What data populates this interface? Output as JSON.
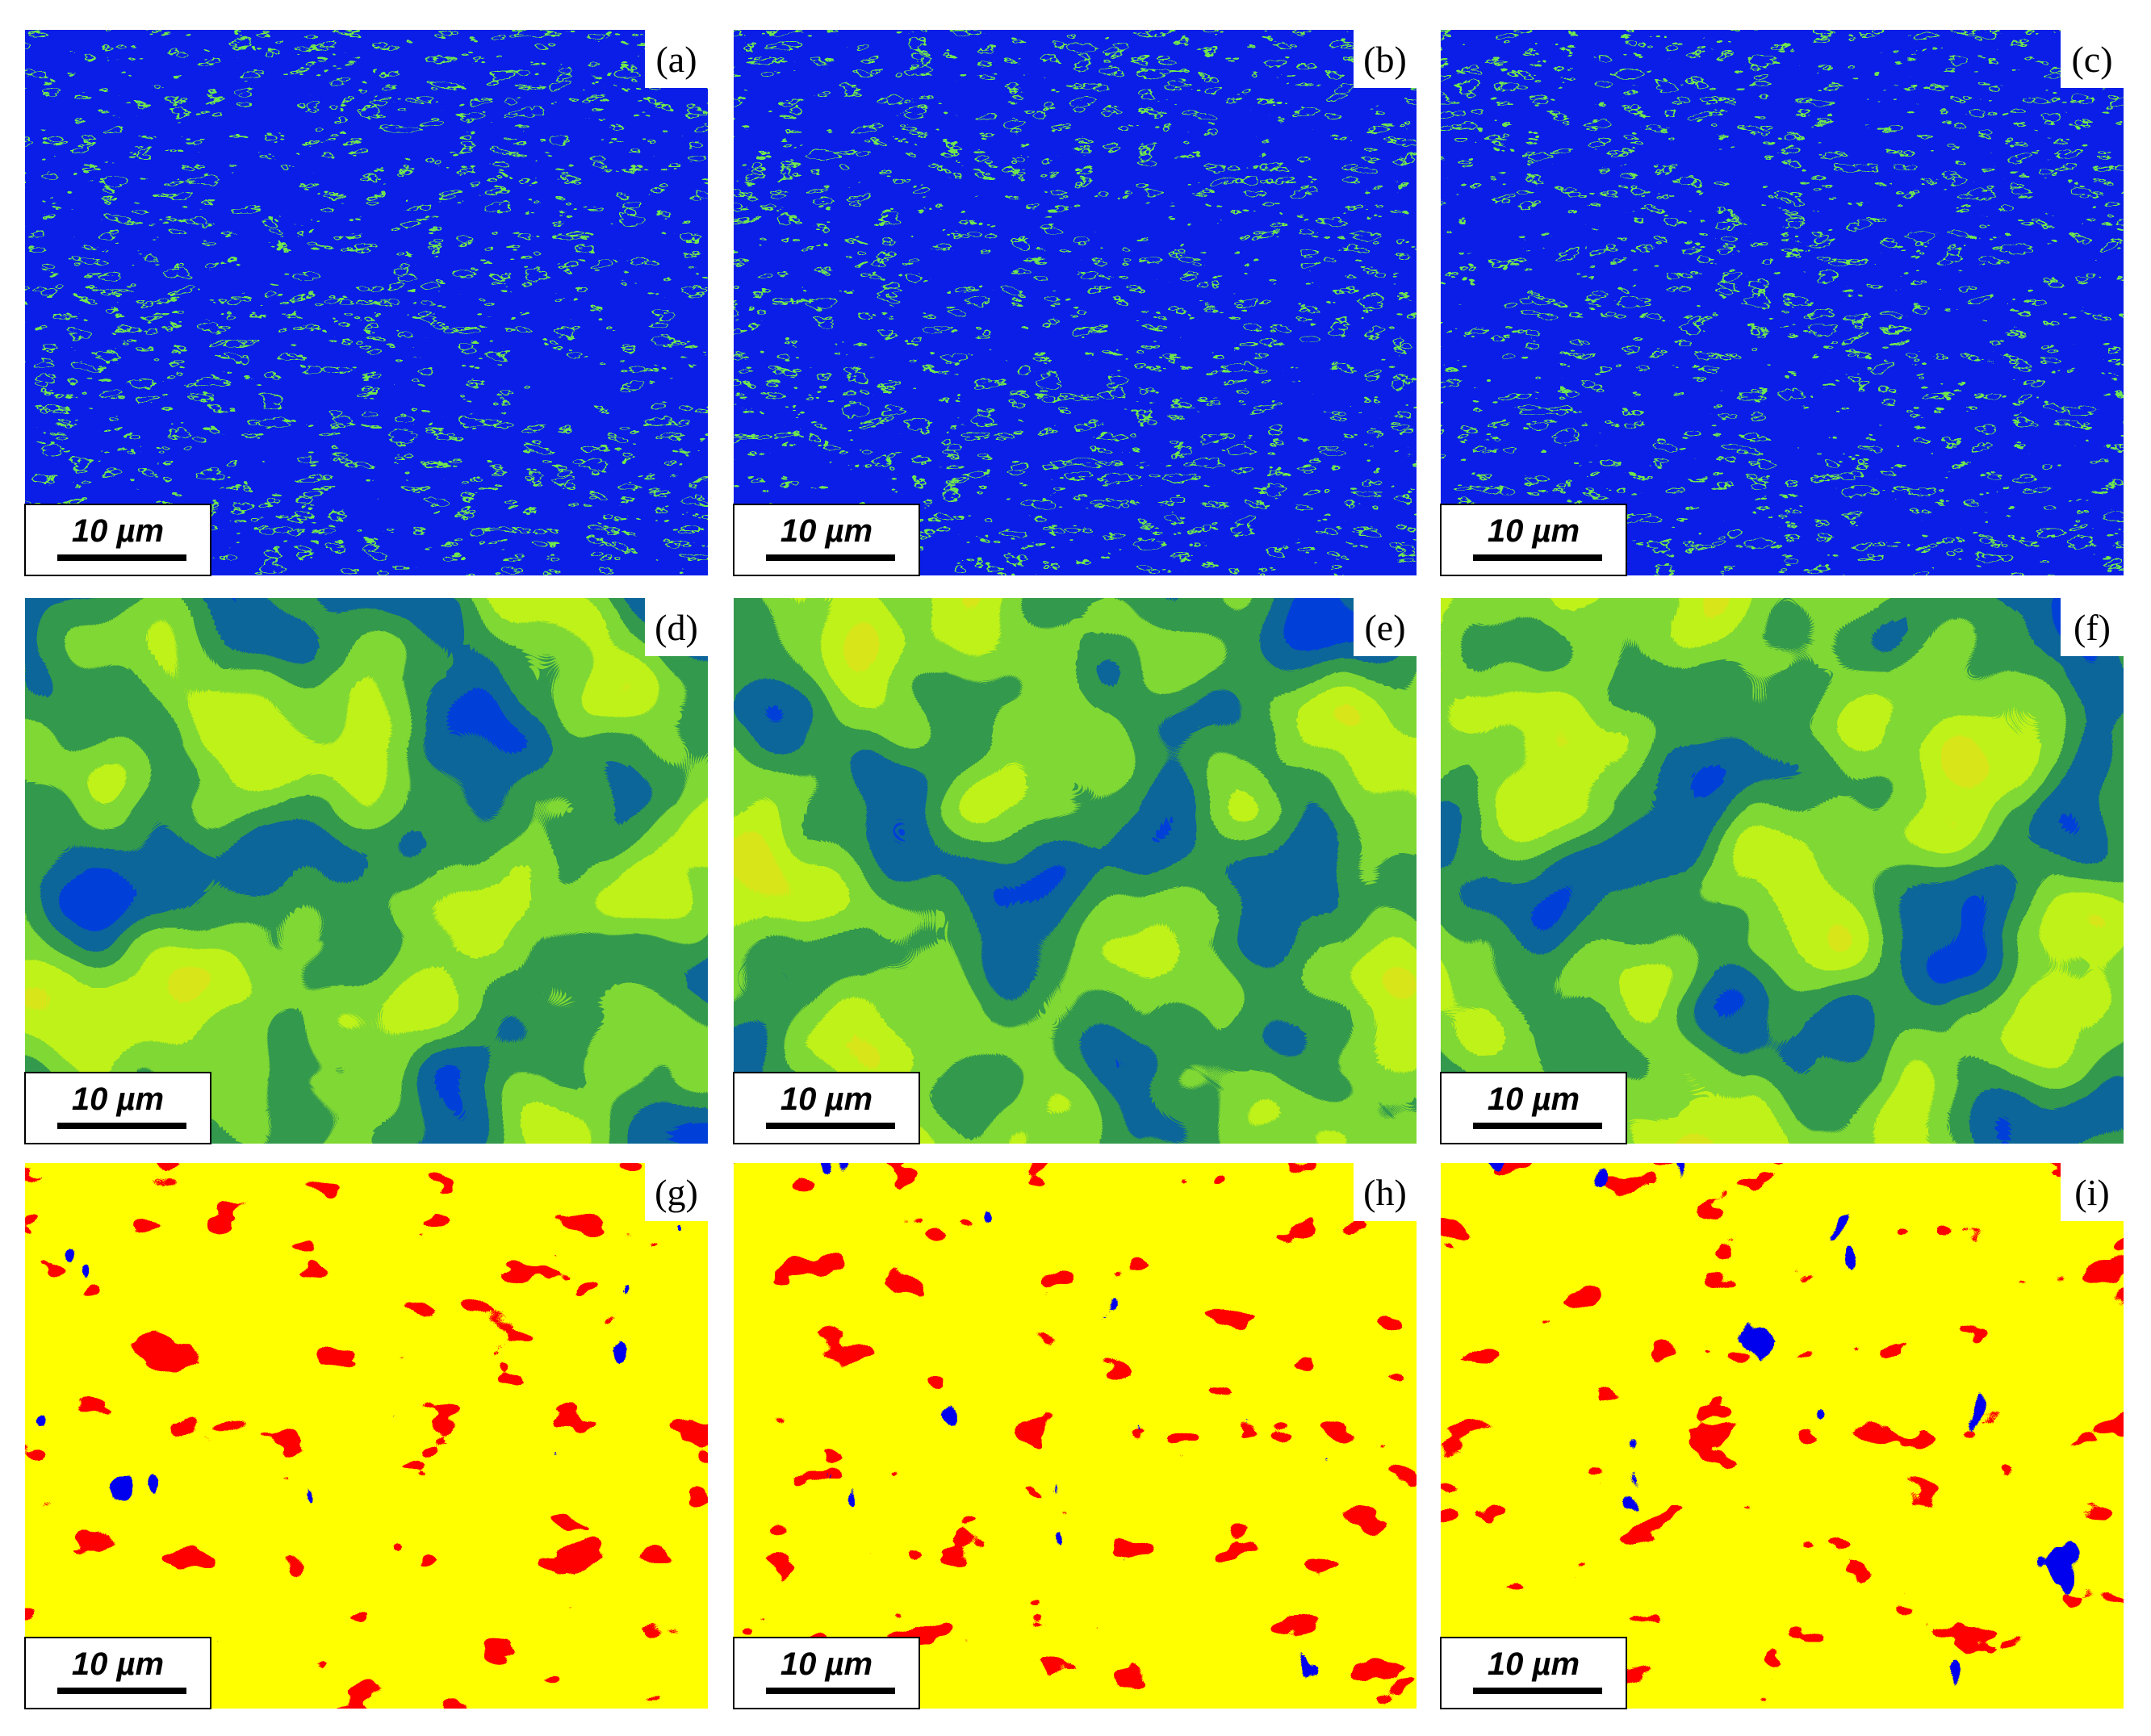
{
  "panels": [
    {
      "label": "(a)",
      "scale_bar": "10 µm"
    },
    {
      "label": "(b)",
      "scale_bar": "10 µm"
    },
    {
      "label": "(c)",
      "scale_bar": "10 µm"
    },
    {
      "label": "(d)",
      "scale_bar": "10 µm"
    },
    {
      "label": "(e)",
      "scale_bar": "10 µm"
    },
    {
      "label": "(f)",
      "scale_bar": "10 µm"
    },
    {
      "label": "(g)",
      "scale_bar": "10 µm"
    },
    {
      "label": "(h)",
      "scale_bar": "10 µm"
    },
    {
      "label": "(i)",
      "scale_bar": "10 µm"
    }
  ]
}
